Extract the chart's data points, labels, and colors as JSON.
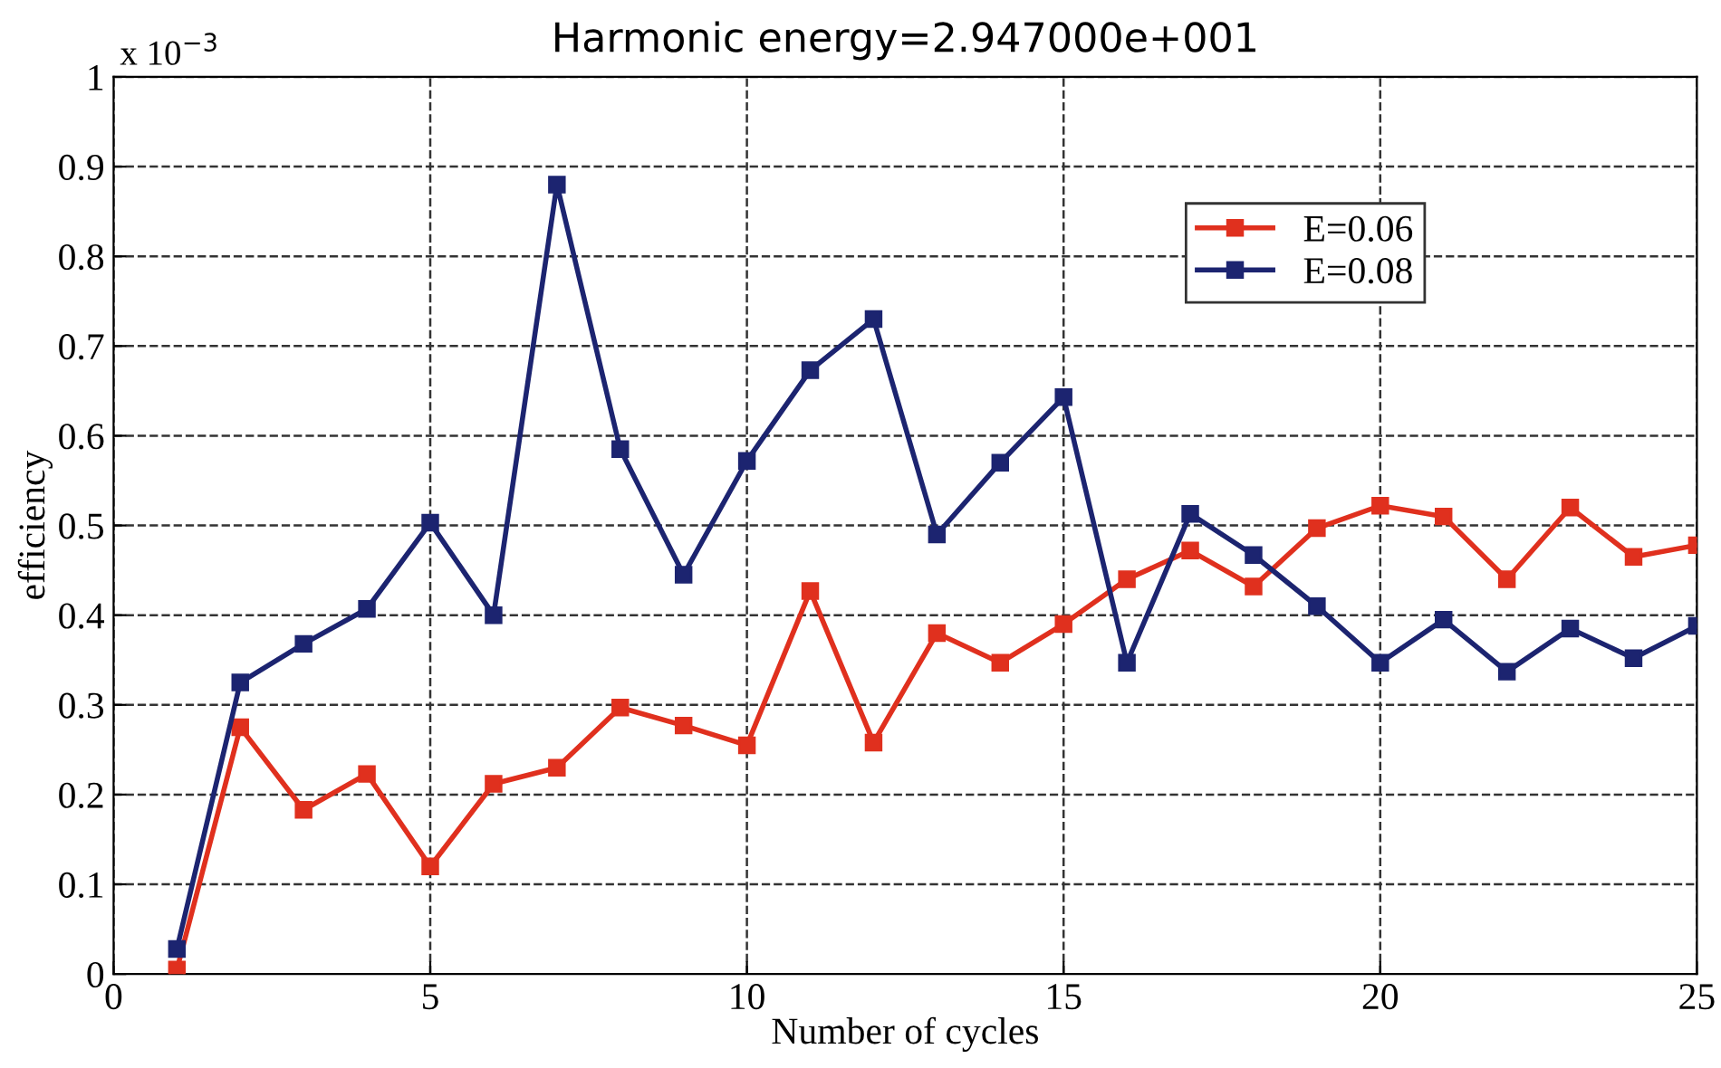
{
  "chart_data": {
    "type": "line",
    "title": "Harmonic energy=2.947000e+001",
    "xlabel": "Number of cycles",
    "ylabel": "efficiency",
    "annotations": [
      "x 10$^{−3}$"
    ],
    "x": [
      1,
      2,
      3,
      4,
      5,
      6,
      7,
      8,
      9,
      10,
      11,
      12,
      13,
      14,
      15,
      16,
      17,
      18,
      19,
      20,
      21,
      22,
      23,
      24,
      25
    ],
    "series": [
      {
        "name": "E=0.06",
        "color": "#e0301e",
        "values": [
          0.005,
          0.275,
          0.183,
          0.223,
          0.12,
          0.212,
          0.23,
          0.297,
          0.277,
          0.255,
          0.427,
          0.258,
          0.38,
          0.347,
          0.39,
          0.44,
          0.472,
          0.432,
          0.497,
          0.522,
          0.51,
          0.44,
          0.52,
          0.465,
          0.478
        ]
      },
      {
        "name": "E=0.08",
        "color": "#1c2470",
        "values": [
          0.028,
          0.325,
          0.368,
          0.407,
          0.503,
          0.4,
          0.88,
          0.585,
          0.445,
          0.572,
          0.673,
          0.73,
          0.49,
          0.57,
          0.643,
          0.347,
          0.513,
          0.467,
          0.41,
          0.347,
          0.395,
          0.337,
          0.385,
          0.352,
          0.388
        ]
      }
    ],
    "xlim": [
      0,
      25
    ],
    "xticks": [
      0,
      5,
      10,
      15,
      20,
      25
    ],
    "ylim": [
      0,
      1
    ],
    "yticks": [
      0,
      0.1,
      0.2,
      0.3,
      0.4,
      0.5,
      0.6,
      0.7,
      0.8,
      0.9,
      1
    ],
    "grid": true,
    "legend": "top right",
    "marker": "square",
    "line_style": "solid"
  }
}
